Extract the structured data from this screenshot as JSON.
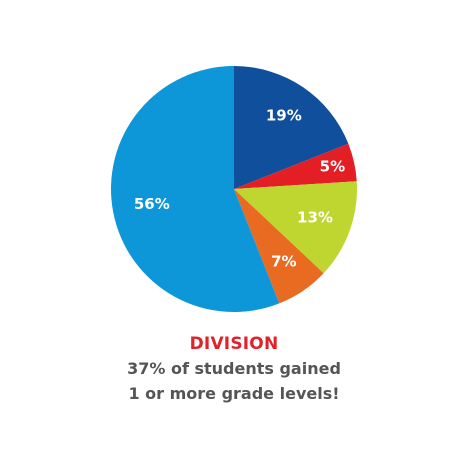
{
  "chart_data": {
    "type": "pie",
    "values": [
      19,
      5,
      13,
      7,
      56
    ],
    "labels": [
      "19%",
      "5%",
      "13%",
      "7%",
      "56%"
    ],
    "colors": [
      "#0f4f9c",
      "#e31e25",
      "#bfd631",
      "#e96b22",
      "#0d96d8"
    ]
  },
  "caption": {
    "title": "DIVISION",
    "line1": "37% of students gained",
    "line2": "1 or more grade levels!"
  }
}
